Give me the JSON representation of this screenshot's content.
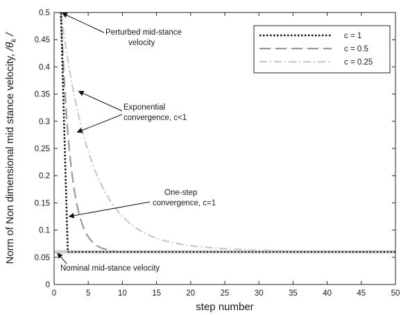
{
  "chart_data": {
    "type": "line",
    "xlabel": "step number",
    "ylabel_main": "Norm of Non dimensional mid stance velocity, ",
    "ylabel_symbol": "/θ̇",
    "ylabel_subscript": "k",
    "ylabel_end": " /",
    "xlim": [
      0,
      50
    ],
    "ylim": [
      0,
      0.5
    ],
    "xticks": [
      "0",
      "5",
      "10",
      "15",
      "20",
      "25",
      "30",
      "35",
      "40",
      "45",
      "50"
    ],
    "yticks": [
      "0",
      "0.05",
      "0.1",
      "0.15",
      "0.2",
      "0.25",
      "0.3",
      "0.35",
      "0.4",
      "0.45",
      "0.5"
    ],
    "grid": false,
    "legend_position": "top-right",
    "nominal_value": 0.06,
    "initial_value": 0.5,
    "series": [
      {
        "name": "c = 1",
        "color": "#111111",
        "dash": "dotted",
        "c": 1,
        "x": [
          1,
          2,
          3,
          50
        ],
        "y": [
          0.5,
          0.06,
          0.06,
          0.06
        ]
      },
      {
        "name": "c = 0.5",
        "color": "#999999",
        "dash": "long-dash",
        "c": 0.5,
        "x": [
          1,
          2,
          3,
          4,
          5,
          6,
          7,
          8,
          10,
          12,
          15,
          20,
          50
        ],
        "y": [
          0.5,
          0.28,
          0.17,
          0.115,
          0.0875,
          0.0738,
          0.0669,
          0.0634,
          0.0609,
          0.0602,
          0.06,
          0.06,
          0.06
        ]
      },
      {
        "name": "c = 0.25",
        "color": "#c8c8c8",
        "dash": "dash-dot",
        "c": 0.25,
        "x": [
          1,
          3,
          5,
          7,
          9,
          11,
          13,
          15,
          17,
          20,
          25,
          30,
          35,
          40,
          50
        ],
        "y": [
          0.5,
          0.3075,
          0.2001,
          0.1418,
          0.1101,
          0.0929,
          0.0836,
          0.0786,
          0.0758,
          0.0734,
          0.0711,
          0.0701,
          0.0697,
          0.0696,
          0.06
        ]
      }
    ],
    "annotations": [
      {
        "lines": [
          "Perturbed mid-stance",
          "velocity"
        ],
        "target": [
          1,
          0.5
        ]
      },
      {
        "lines": [
          "Exponential",
          "convergence, c<1"
        ],
        "targets": [
          [
            3.4,
            0.355
          ],
          [
            3.2,
            0.28
          ]
        ]
      },
      {
        "lines": [
          "One-step",
          "convergence, c=1"
        ],
        "target": [
          2,
          0.125
        ]
      },
      {
        "lines": [
          "Nominal mid-stance velocity"
        ],
        "target": [
          0.3,
          0.06
        ]
      }
    ]
  }
}
